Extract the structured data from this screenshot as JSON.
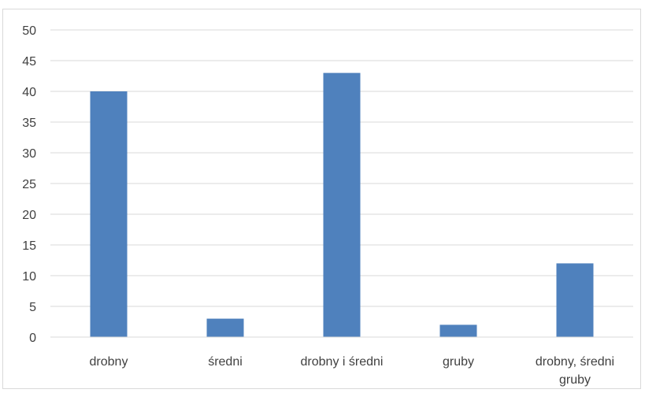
{
  "chart_data": {
    "type": "bar",
    "categories": [
      [
        "drobny"
      ],
      [
        "średni"
      ],
      [
        "drobny i średni"
      ],
      [
        "gruby"
      ],
      [
        "drobny, średni",
        "gruby"
      ]
    ],
    "values": [
      40,
      3,
      43,
      2,
      12
    ],
    "ylim": [
      0,
      50
    ],
    "yticks": [
      0,
      5,
      10,
      15,
      20,
      25,
      30,
      35,
      40,
      45,
      50
    ],
    "grid": true,
    "legend": "none",
    "bar_color": "#4f81bd",
    "grid_color": "#d9d9d9"
  }
}
